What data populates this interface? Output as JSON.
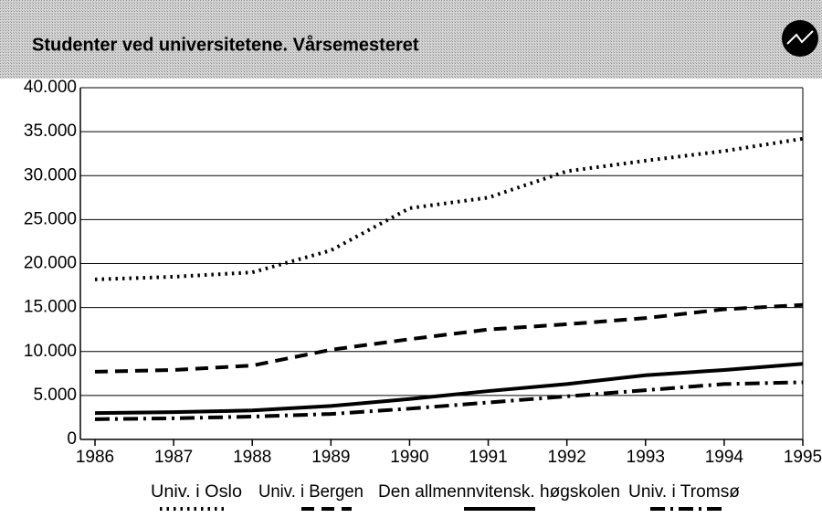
{
  "chart_data": {
    "type": "line",
    "title": "Studenter ved universitetene. Vårsemesteret",
    "x": [
      1986,
      1987,
      1988,
      1989,
      1990,
      1991,
      1992,
      1993,
      1994,
      1995
    ],
    "xlim": [
      1986,
      1995
    ],
    "xticks": [
      1986,
      1987,
      1988,
      1989,
      1990,
      1991,
      1992,
      1993,
      1994,
      1995
    ],
    "ylim": [
      0,
      40000
    ],
    "yticks": [
      0,
      {
        "value": 5000,
        "label": "5.000"
      },
      {
        "value": 10000,
        "label": "10.000"
      },
      {
        "value": 15000,
        "label": "15.000"
      },
      {
        "value": 20000,
        "label": "20.000"
      },
      {
        "value": 25000,
        "label": "25.000"
      },
      {
        "value": 30000,
        "label": "30.000"
      },
      {
        "value": 35000,
        "label": "35.000"
      },
      {
        "value": 40000,
        "label": "40.000"
      }
    ],
    "grid": true,
    "legend": "bottom",
    "series": [
      {
        "name": "Univ. i Oslo",
        "color": "#000000",
        "dash": "dotted",
        "values": [
          18200,
          18500,
          19000,
          21500,
          26300,
          27500,
          30500,
          31700,
          32800,
          34200
        ]
      },
      {
        "name": "Univ. i Bergen",
        "color": "#000000",
        "dash": "dashed",
        "values": [
          7700,
          7900,
          8400,
          10200,
          11400,
          12500,
          13100,
          13800,
          14800,
          15300
        ]
      },
      {
        "name": "Den allmennvitensk. høgskolen",
        "color": "#000000",
        "dash": "solid",
        "values": [
          3000,
          3100,
          3300,
          3800,
          4600,
          5500,
          6300,
          7300,
          7900,
          8600
        ]
      },
      {
        "name": "Univ. i Tromsø",
        "color": "#000000",
        "dash": "dashdot",
        "values": [
          2300,
          2400,
          2600,
          2900,
          3500,
          4200,
          4900,
          5600,
          6300,
          6500
        ]
      }
    ]
  }
}
